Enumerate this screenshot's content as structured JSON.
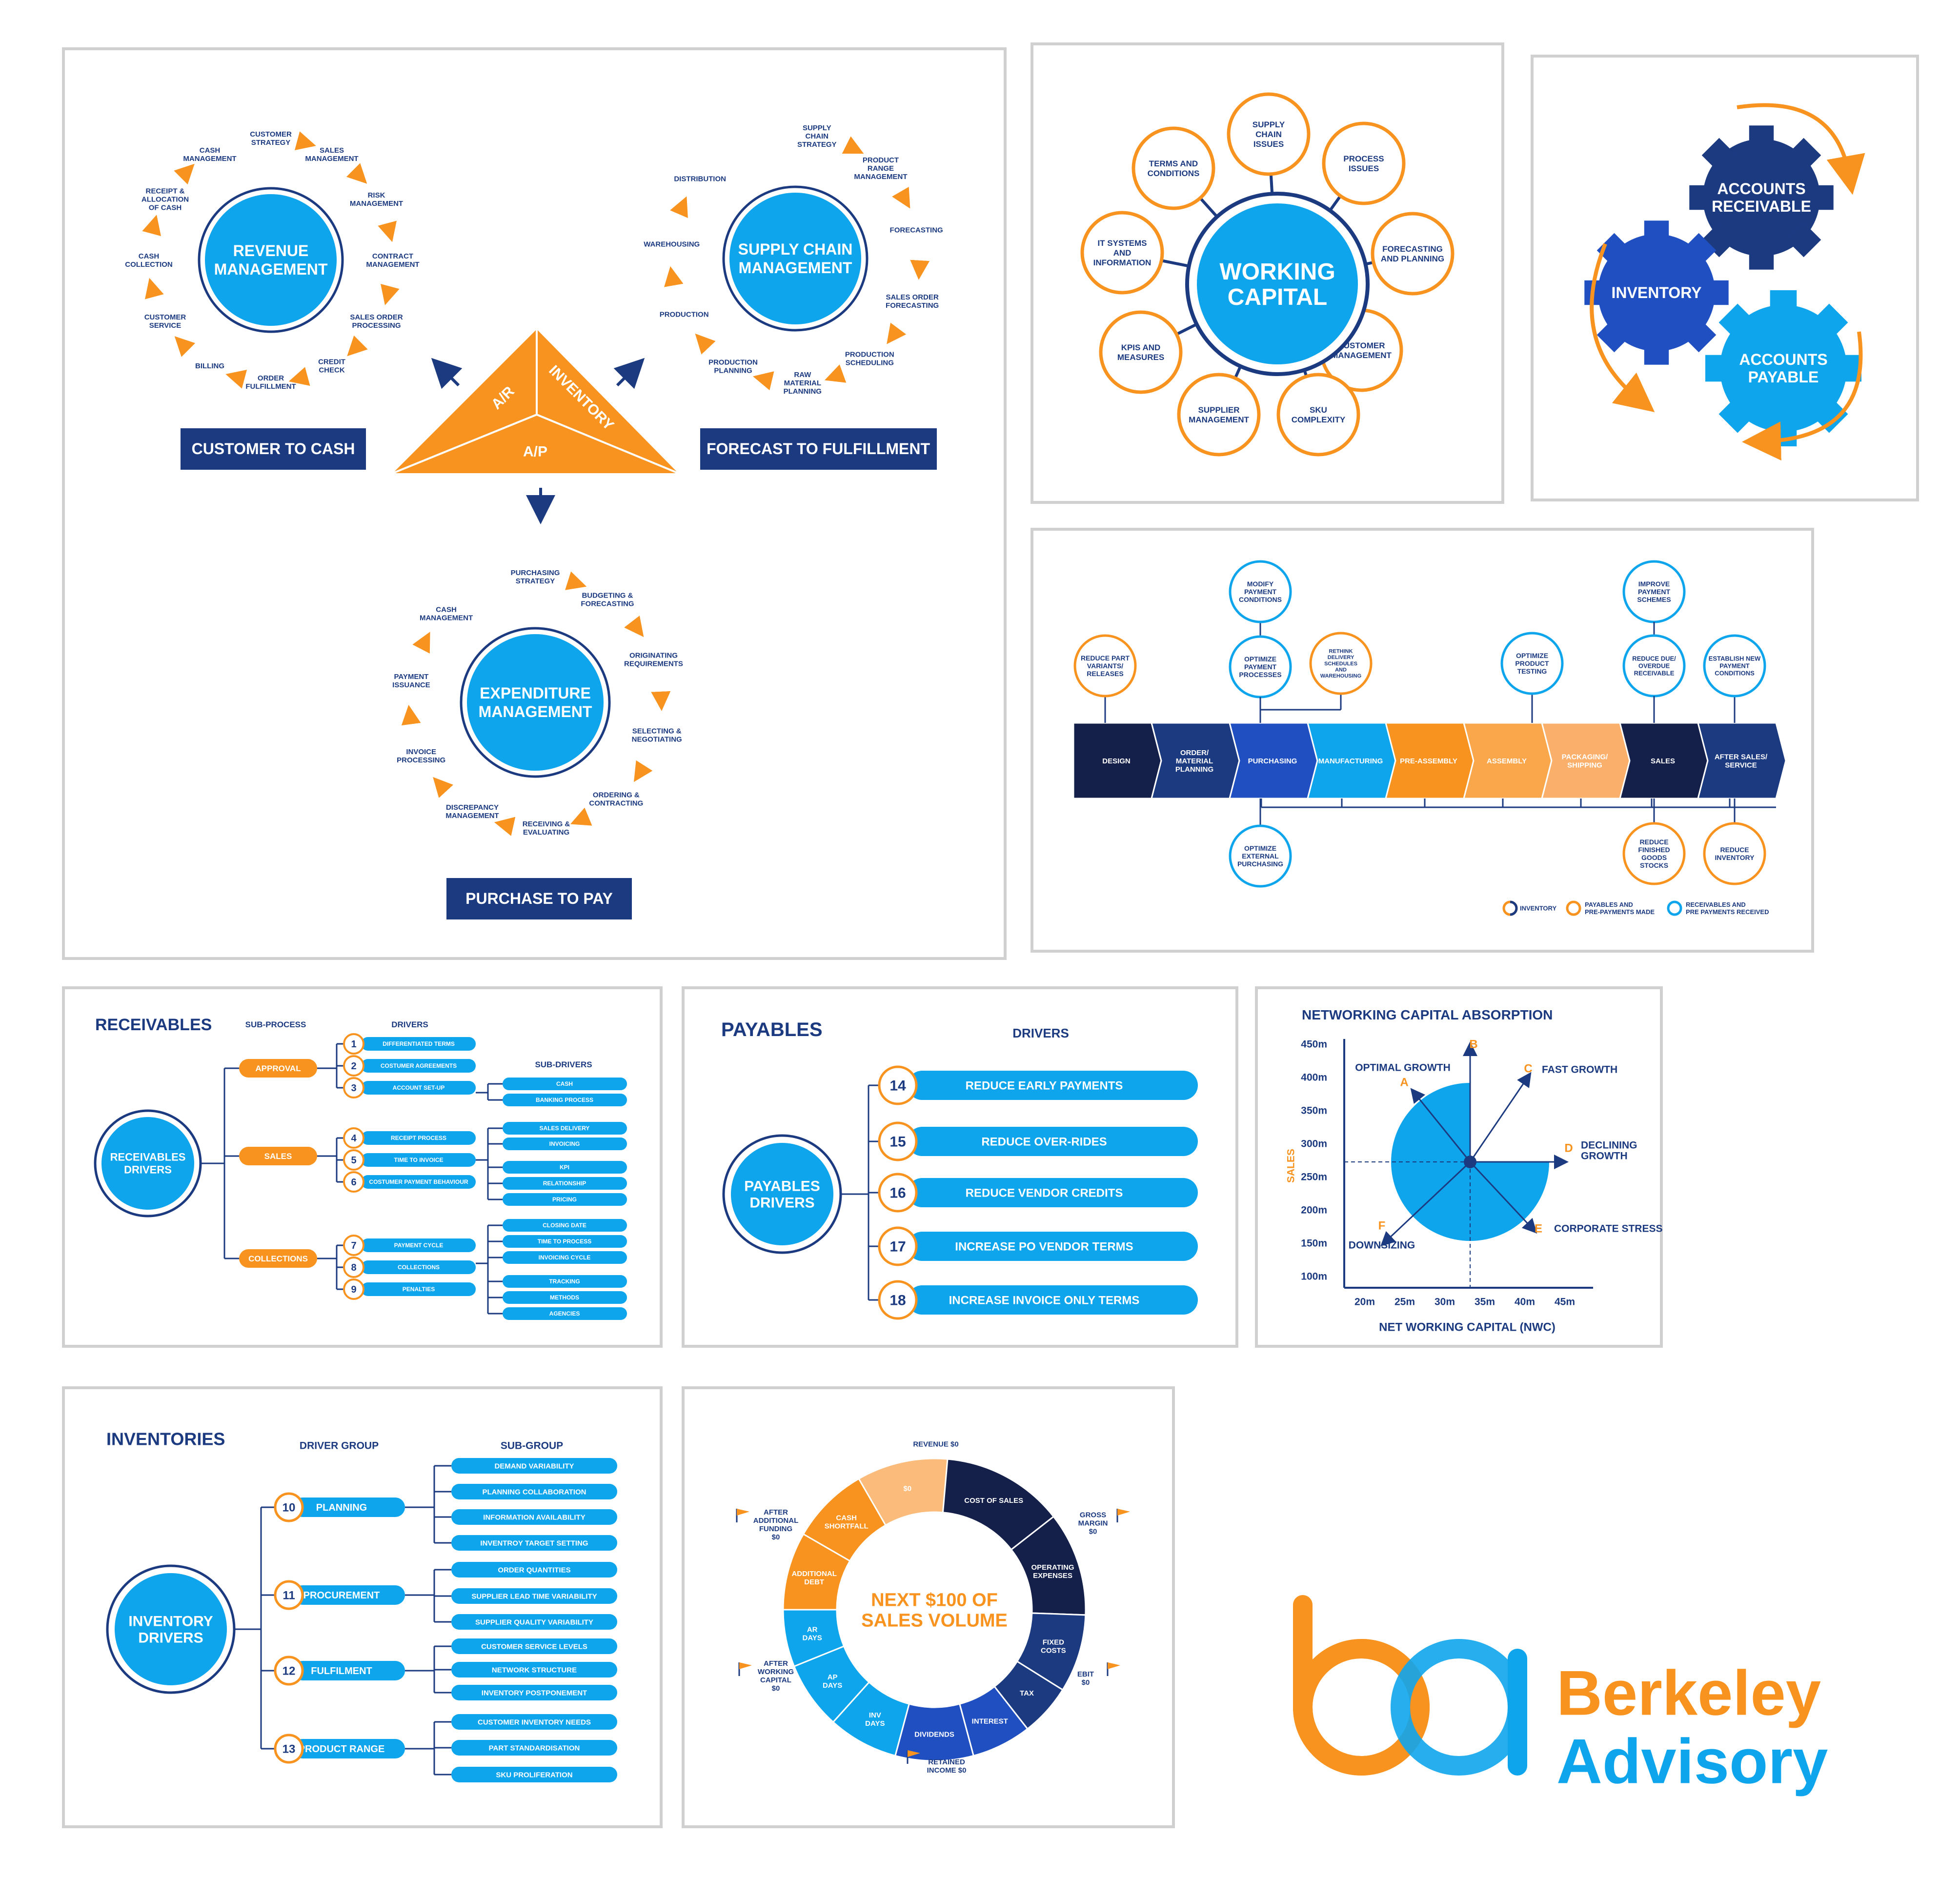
{
  "colors": {
    "navy": "#1c3a80",
    "dark_navy": "#14204a",
    "mid_blue": "#1f4fc1",
    "cyan": "#0ea5ec",
    "orange": "#f7931e",
    "light_orange": "#fab06a",
    "border": "#d0d0d0"
  },
  "p1": {
    "revenue_center": [
      "REVENUE",
      "MANAGEMENT"
    ],
    "revenue_items": [
      [
        "CUSTOMER",
        "STRATEGY"
      ],
      [
        "SALES",
        "MANAGEMENT"
      ],
      [
        "RISK",
        "MANAGEMENT"
      ],
      [
        "CONTRACT",
        "MANAGEMENT"
      ],
      [
        "SALES ORDER",
        "PROCESSING"
      ],
      [
        "CREDIT",
        "CHECK"
      ],
      [
        "ORDER",
        "FULFILLMENT"
      ],
      [
        "BILLING"
      ],
      [
        "CUSTOMER",
        "SERVICE"
      ],
      [
        "CASH",
        "COLLECTION"
      ],
      [
        "RECEIPT &",
        "ALLOCATION",
        "OF CASH"
      ],
      [
        "CASH",
        "MANAGEMENT"
      ]
    ],
    "supply_center": [
      "SUPPLY CHAIN",
      "MANAGEMENT"
    ],
    "supply_items": [
      [
        "SUPPLY",
        "CHAIN",
        "STRATEGY"
      ],
      [
        "PRODUCT",
        "RANGE",
        "MANAGEMENT"
      ],
      [
        "FORECASTING"
      ],
      [
        "SALES ORDER",
        "FORECASTING"
      ],
      [
        "PRODUCTION",
        "SCHEDULING"
      ],
      [
        "RAW",
        "MATERIAL",
        "PLANNING"
      ],
      [
        "PRODUCTION",
        "PLANNING"
      ],
      [
        "PRODUCTION"
      ],
      [
        "WAREHOUSING"
      ],
      [
        "DISTRIBUTION"
      ]
    ],
    "expend_center": [
      "EXPENDITURE",
      "MANAGEMENT"
    ],
    "expend_items": [
      [
        "PURCHASING",
        "STRATEGY"
      ],
      [
        "BUDGETING &",
        "FORECASTING"
      ],
      [
        "ORIGINATING",
        "REQUIREMENTS"
      ],
      [
        "SELECTING &",
        "NEGOTIATING"
      ],
      [
        "ORDERING &",
        "CONTRACTING"
      ],
      [
        "RECEIVING &",
        "EVALUATING"
      ],
      [
        "DISCREPANCY",
        "MANAGEMENT"
      ],
      [
        "INVOICE",
        "PROCESSING"
      ],
      [
        "PAYMENT",
        "ISSUANCE"
      ],
      [
        "CASH",
        "MANAGEMENT"
      ]
    ],
    "tri_ar": "A/R",
    "tri_inventory": "INVENTORY",
    "tri_ap": "A/P",
    "label_c2c": "CUSTOMER TO CASH",
    "label_f2f": "FORECAST TO FULFILLMENT",
    "label_p2p": "PURCHASE TO PAY"
  },
  "p2": {
    "center": [
      "WORKING",
      "CAPITAL"
    ],
    "items": [
      [
        "SUPPLY",
        "CHAIN",
        "ISSUES"
      ],
      [
        "PROCESS",
        "ISSUES"
      ],
      [
        "FORECASTING",
        "AND PLANNING"
      ],
      [
        "CUSTOMER",
        "MANAGEMENT"
      ],
      [
        "SKU",
        "COMPLEXITY"
      ],
      [
        "SUPPLIER",
        "MANAGEMENT"
      ],
      [
        "KPIS AND",
        "MEASURES"
      ],
      [
        "IT SYSTEMS",
        "AND",
        "INFORMATION"
      ],
      [
        "TERMS AND",
        "CONDITIONS"
      ]
    ]
  },
  "p3": {
    "gear_ar": [
      "ACCOUNTS",
      "RECEIVABLE"
    ],
    "gear_inv": [
      "INVENTORY"
    ],
    "gear_ap": [
      "ACCOUNTS",
      "PAYABLE"
    ]
  },
  "p4": {
    "chain": [
      [
        "DESIGN"
      ],
      [
        "ORDER/",
        "MATERIAL",
        "PLANNING"
      ],
      [
        "PURCHASING"
      ],
      [
        "MANUFACTURING"
      ],
      [
        "PRE-ASSEMBLY"
      ],
      [
        "ASSEMBLY"
      ],
      [
        "PACKAGING/",
        "SHIPPING"
      ],
      [
        "SALES"
      ],
      [
        "AFTER  SALES/",
        "SERVICE"
      ]
    ],
    "c_reduce_part": [
      "REDUCE PART",
      "VARIANTS/",
      "RELEASES"
    ],
    "c_modify": [
      "MODIFY",
      "PAYMENT",
      "CONDITIONS"
    ],
    "c_opt_pay": [
      "OPTIMIZE",
      "PAYMENT",
      "PROCESSES"
    ],
    "c_rethink": [
      "RETHINK",
      "DELIVERY",
      "SCHEDULES",
      "AND",
      "WAREHOUSING"
    ],
    "c_opt_test": [
      "OPTIMIZE",
      "PRODUCT",
      "TESTING"
    ],
    "c_improve": [
      "IMPROVE",
      "PAYMENT",
      "SCHEMES"
    ],
    "c_reduce_due": [
      "REDUCE DUE/",
      "OVERDUE",
      "RECEIVABLE"
    ],
    "c_establish": [
      "ESTABLISH NEW",
      "PAYMENT",
      "CONDITIONS"
    ],
    "c_opt_ext": [
      "OPTIMIZE",
      "EXTERNAL",
      "PURCHASING"
    ],
    "c_reduce_fin": [
      "REDUCE",
      "FINISHED",
      "GOODS",
      "STOCKS"
    ],
    "c_reduce_inv": [
      "REDUCE",
      "INVENTORY"
    ],
    "legend_inventory": "INVENTORY",
    "legend_payables": [
      "PAYABLES AND",
      "PRE-PAYMENTS MADE"
    ],
    "legend_receivables": [
      "RECEIVABLES AND",
      "PRE PAYMENTS RECEIVED"
    ]
  },
  "p5": {
    "title": "RECEIVABLES",
    "h_sub": "SUB-PROCESS",
    "h_drivers": "DRIVERS",
    "h_subdrivers": "SUB-DRIVERS",
    "center": [
      "RECEIVABLES",
      "DRIVERS"
    ],
    "groups": [
      "APPROVAL",
      "SALES",
      "COLLECTIONS"
    ],
    "drivers": [
      {
        "n": "1",
        "t": "DIFFERENTIATED TERMS"
      },
      {
        "n": "2",
        "t": "COSTUMER AGREEMENTS"
      },
      {
        "n": "3",
        "t": "ACCOUNT SET-UP"
      },
      {
        "n": "4",
        "t": "RECEIPT PROCESS"
      },
      {
        "n": "5",
        "t": "TIME TO INVOICE"
      },
      {
        "n": "6",
        "t": "COSTUMER PAYMENT BEHAVIOUR"
      },
      {
        "n": "7",
        "t": "PAYMENT CYCLE"
      },
      {
        "n": "8",
        "t": "COLLECTIONS"
      },
      {
        "n": "9",
        "t": "PENALTIES"
      }
    ],
    "subdrivers": [
      "CASH",
      "BANKING PROCESS",
      "SALES DELIVERY",
      "INVOICING",
      "KPI",
      "RELATIONSHIP",
      "PRICING",
      "CLOSING DATE",
      "TIME TO PROCESS",
      "INVOICING CYCLE",
      "TRACKING",
      "METHODS",
      "AGENCIES"
    ]
  },
  "p6": {
    "title": "PAYABLES",
    "h_drivers": "DRIVERS",
    "center": [
      "PAYABLES",
      "DRIVERS"
    ],
    "items": [
      {
        "n": "14",
        "t": "REDUCE EARLY PAYMENTS"
      },
      {
        "n": "15",
        "t": "REDUCE OVER-RIDES"
      },
      {
        "n": "16",
        "t": "REDUCE VENDOR CREDITS"
      },
      {
        "n": "17",
        "t": "INCREASE PO VENDOR TERMS"
      },
      {
        "n": "18",
        "t": "INCREASE INVOICE ONLY TERMS"
      }
    ]
  },
  "chart_data": {
    "type": "diagram",
    "title": "NETWORKING CAPITAL ABSORPTION",
    "xlabel": "NET WORKING CAPITAL (NWC)",
    "ylabel": "SALES",
    "x_ticks": [
      "20m",
      "25m",
      "30m",
      "35m",
      "40m",
      "45m"
    ],
    "y_ticks": [
      "450m",
      "400m",
      "350m",
      "300m",
      "250m",
      "200m",
      "150m",
      "100m"
    ],
    "scenarios": [
      {
        "letter": "A",
        "label": "OPTIMAL GROWTH"
      },
      {
        "letter": "B",
        "label": ""
      },
      {
        "letter": "C",
        "label": "FAST GROWTH"
      },
      {
        "letter": "D",
        "label": "DECLINING GROWTH"
      },
      {
        "letter": "E",
        "label": "CORPORATE STRESS"
      },
      {
        "letter": "F",
        "label": "DOWNSIZING"
      }
    ]
  },
  "p8": {
    "title": "INVENTORIES",
    "h_group": "DRIVER GROUP",
    "h_sub": "SUB-GROUP",
    "center": [
      "INVENTORY",
      "DRIVERS"
    ],
    "groups": [
      {
        "n": "10",
        "t": "PLANNING",
        "subs": [
          "DEMAND VARIABILITY",
          "PLANNING COLLABORATION",
          "INFORMATION AVAILABILITY",
          "INVENTROY TARGET SETTING"
        ]
      },
      {
        "n": "11",
        "t": "PROCUREMENT",
        "subs": [
          "ORDER QUANTITIES",
          "SUPPLIER LEAD TIME VARIABILITY",
          "SUPPLIER QUALITY VARIABILITY"
        ]
      },
      {
        "n": "12",
        "t": "FULFILMENT",
        "subs": [
          "CUSTOMER SERVICE LEVELS",
          "NETWORK STRUCTURE",
          "INVENTORY POSTPONEMENT"
        ]
      },
      {
        "n": "13",
        "t": "PRODUCT RANGE",
        "subs": [
          "CUSTOMER INVENTORY NEEDS",
          "PART STANDARDISATION",
          "SKU PROLIFERATION"
        ]
      }
    ]
  },
  "p9": {
    "center": [
      "NEXT $100 OF",
      "SALES VOLUME"
    ],
    "segments": [
      [
        "$0"
      ],
      [
        "COST OF SALES"
      ],
      [
        "OPERATING",
        "EXPENSES"
      ],
      [
        "FIXED",
        "COSTS"
      ],
      [
        "TAX"
      ],
      [
        "INTEREST"
      ],
      [
        "DIVIDENDS"
      ],
      [
        "INV",
        "DAYS"
      ],
      [
        "AP",
        "DAYS"
      ],
      [
        "AR",
        "DAYS"
      ],
      [
        "ADDITIONAL",
        "DEBT"
      ],
      [
        "CASH",
        "SHORTFALL"
      ]
    ],
    "outer": [
      [
        "REVENUE $0"
      ],
      [
        "GROSS",
        "MARGIN",
        "$0"
      ],
      [
        "EBIT",
        "$0"
      ],
      [
        "RETAINED",
        "INCOME $0"
      ],
      [
        "AFTER",
        "WORKING",
        "CAPITAL",
        "$0"
      ],
      [
        "AFTER",
        "ADDITIONAL",
        "FUNDING",
        "$0"
      ]
    ]
  },
  "logo": {
    "line1": "Berkeley",
    "line2": "Advisory"
  }
}
